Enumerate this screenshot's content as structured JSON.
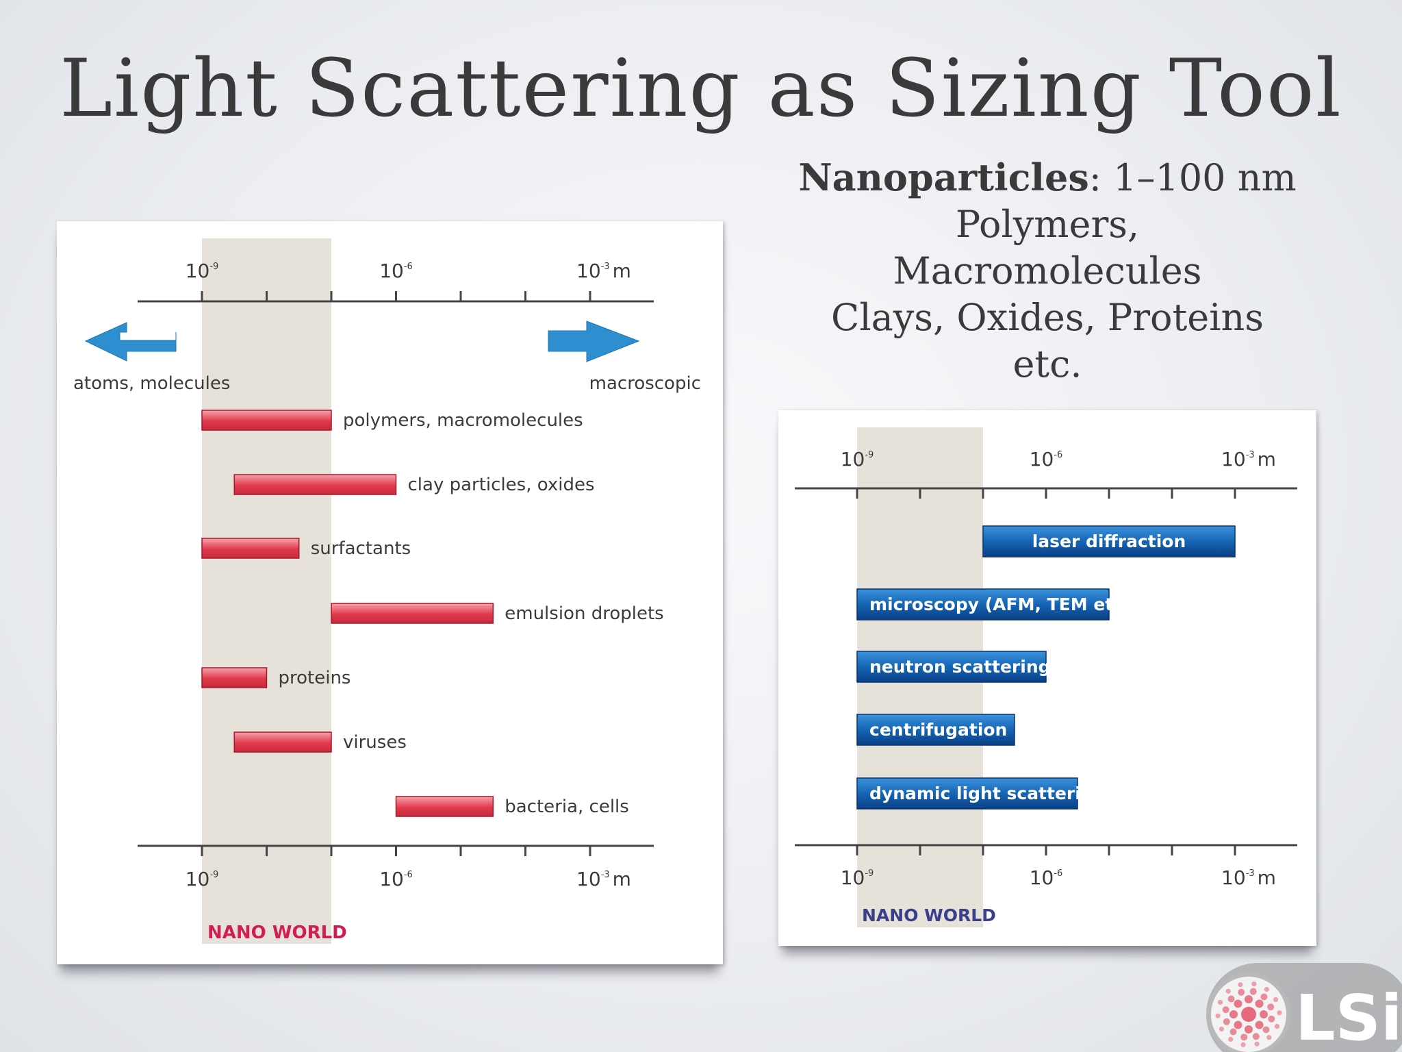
{
  "slide": {
    "title": "Light Scattering as Sizing Tool",
    "nano_bold": "Nanoparticles",
    "nano_rest": ": 1–100 nm",
    "nano_lines": [
      "Polymers,",
      "Macromolecules",
      "Clays, Oxides, Proteins",
      "etc."
    ]
  },
  "logo": {
    "text": "LSi"
  },
  "colors": {
    "nano_band": "#e6e2da",
    "red_bar": "#e03a4c",
    "blue_bar": "#1565b4",
    "arrow": "#2d8fd0",
    "nano_label_left": "#d11d4f",
    "nano_label_right": "#3a3f8a"
  },
  "chart_data": [
    {
      "type": "bar",
      "orientation": "horizontal-range",
      "x_scale": "log",
      "x_unit": "m",
      "xlim_exp": [
        -10,
        -2
      ],
      "tick_labels": [
        {
          "base": "10",
          "exp": "-9"
        },
        {
          "base": "10",
          "exp": "-6"
        },
        {
          "base": "10",
          "exp": "-3",
          "unit": "m"
        }
      ],
      "nano_band_exp": [
        -9,
        -7
      ],
      "nano_label": "NANO WORLD",
      "arrows": {
        "left": "atoms, molecules",
        "right": "macroscopic"
      },
      "series": [
        {
          "name": "polymers, macromolecules",
          "range_exp": [
            -9,
            -7
          ]
        },
        {
          "name": "clay particles, oxides",
          "range_exp": [
            -8.5,
            -6
          ]
        },
        {
          "name": "surfactants",
          "range_exp": [
            -9,
            -7.5
          ]
        },
        {
          "name": "emulsion droplets",
          "range_exp": [
            -7,
            -4.5
          ]
        },
        {
          "name": "proteins",
          "range_exp": [
            -9,
            -8
          ]
        },
        {
          "name": "viruses",
          "range_exp": [
            -8.5,
            -7
          ]
        },
        {
          "name": "bacteria, cells",
          "range_exp": [
            -6,
            -4.5
          ]
        }
      ]
    },
    {
      "type": "bar",
      "orientation": "horizontal-range",
      "x_scale": "log",
      "x_unit": "m",
      "xlim_exp": [
        -10,
        -2
      ],
      "tick_labels": [
        {
          "base": "10",
          "exp": "-9"
        },
        {
          "base": "10",
          "exp": "-6"
        },
        {
          "base": "10",
          "exp": "-3",
          "unit": "m"
        }
      ],
      "nano_band_exp": [
        -9,
        -7
      ],
      "nano_label": "NANO WORLD",
      "series": [
        {
          "name": "laser diffraction",
          "range_exp": [
            -7,
            -3
          ]
        },
        {
          "name": "microscopy (AFM, TEM etc.)",
          "range_exp": [
            -9,
            -5
          ]
        },
        {
          "name": "neutron scattering",
          "range_exp": [
            -9,
            -6
          ]
        },
        {
          "name": "centrifugation",
          "range_exp": [
            -9,
            -6.5
          ]
        },
        {
          "name": "dynamic light scattering",
          "range_exp": [
            -9,
            -5.5
          ]
        }
      ]
    }
  ]
}
